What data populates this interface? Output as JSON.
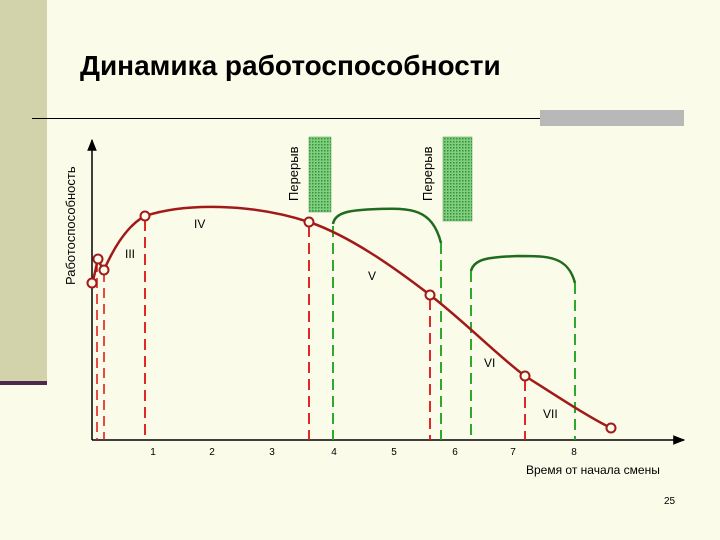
{
  "slide": {
    "title": "Динамика работоспособности",
    "page_number": "25"
  },
  "chart_data": {
    "type": "line",
    "ylabel": "Работоспособность",
    "xlabel": "Время от начала смены",
    "xticks": [
      "1",
      "2",
      "3",
      "4",
      "5",
      "6",
      "7",
      "8"
    ],
    "break_label": "Перерыв",
    "phases": [
      "III",
      "IV",
      "V",
      "VI",
      "VII"
    ],
    "colors": {
      "curve": "#a11a1a",
      "post_break_curve": "#1f6b1f",
      "main_dash": "#dd1111",
      "break_dash": "#18a018",
      "break_fill": "#7ecf7e"
    }
  }
}
